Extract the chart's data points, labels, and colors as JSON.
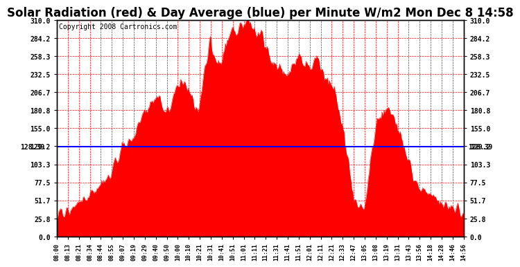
{
  "title": "Solar Radiation (red) & Day Average (blue) per Minute W/m2 Mon Dec 8 14:58",
  "copyright": "Copyright 2008 Cartronics.com",
  "avg_value": 128.39,
  "y_min": 0.0,
  "y_max": 310.0,
  "y_ticks": [
    0.0,
    25.8,
    51.7,
    77.5,
    103.3,
    129.2,
    155.0,
    180.8,
    206.7,
    232.5,
    258.3,
    284.2,
    310.0
  ],
  "background_color": "#ffffff",
  "fill_color": "#ff0000",
  "line_color": "#ff0000",
  "avg_line_color": "#0000ff",
  "grid_color": "#ff0000",
  "plot_bg_color": "#ffffff",
  "title_fontsize": 12,
  "copyright_fontsize": 7,
  "tick_labels": [
    "08:00",
    "08:13",
    "08:21",
    "08:34",
    "08:44",
    "08:55",
    "09:07",
    "09:19",
    "09:29",
    "09:40",
    "09:50",
    "10:00",
    "10:10",
    "10:21",
    "10:31",
    "10:41",
    "10:51",
    "11:01",
    "11:11",
    "11:21",
    "11:31",
    "11:41",
    "11:51",
    "12:01",
    "12:11",
    "12:21",
    "12:33",
    "12:47",
    "13:05",
    "13:08",
    "13:19",
    "13:31",
    "13:43",
    "13:56",
    "14:18",
    "14:28",
    "14:46",
    "14:56"
  ]
}
